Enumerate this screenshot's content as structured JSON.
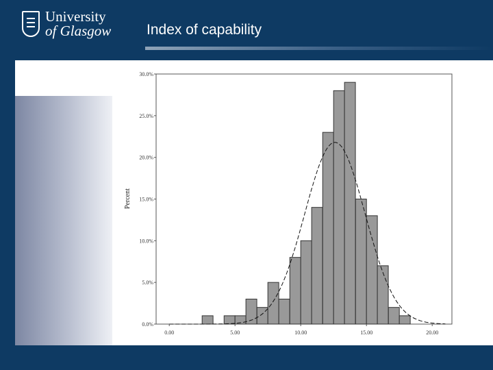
{
  "branding": {
    "logo_line1": "University",
    "logo_line2": "of Glasgow"
  },
  "slide": {
    "title": "Index of capability"
  },
  "colors": {
    "background": "#0e3a63",
    "bar_fill": "#999999",
    "bar_stroke": "#333333"
  },
  "chart_data": {
    "type": "bar",
    "subtype": "histogram-with-normal-curve",
    "title": "",
    "xlabel": "",
    "ylabel": "Percent",
    "xlim": [
      -1.0,
      21.5
    ],
    "ylim": [
      0,
      30
    ],
    "x_ticks": [
      0,
      5,
      10,
      15,
      20
    ],
    "x_tick_labels": [
      "0.00",
      "5.00",
      "10.00",
      "15.00",
      "20.00"
    ],
    "y_ticks": [
      0,
      5,
      10,
      15,
      20,
      25,
      30
    ],
    "y_tick_labels": [
      "0.0%",
      "5.0%",
      "10.0%",
      "15.0%",
      "20.0%",
      "25.0%",
      "30.0%"
    ],
    "bin_width": 0.83,
    "bins": [
      {
        "start": 2.5,
        "value": 1
      },
      {
        "start": 3.33,
        "value": 0
      },
      {
        "start": 4.17,
        "value": 1
      },
      {
        "start": 5.0,
        "value": 1
      },
      {
        "start": 5.83,
        "value": 3
      },
      {
        "start": 6.67,
        "value": 2
      },
      {
        "start": 7.5,
        "value": 5
      },
      {
        "start": 8.33,
        "value": 3
      },
      {
        "start": 9.17,
        "value": 8
      },
      {
        "start": 10.0,
        "value": 10
      },
      {
        "start": 10.83,
        "value": 14
      },
      {
        "start": 11.67,
        "value": 23
      },
      {
        "start": 12.5,
        "value": 28
      },
      {
        "start": 13.33,
        "value": 29
      },
      {
        "start": 14.17,
        "value": 15
      },
      {
        "start": 15.0,
        "value": 13
      },
      {
        "start": 15.83,
        "value": 7
      },
      {
        "start": 16.67,
        "value": 2
      },
      {
        "start": 17.5,
        "value": 1
      }
    ],
    "normal_curve": {
      "mean": 12.6,
      "sd": 2.3,
      "peak": 21.8,
      "style": "dashed"
    },
    "grid": false,
    "legend": "none"
  }
}
